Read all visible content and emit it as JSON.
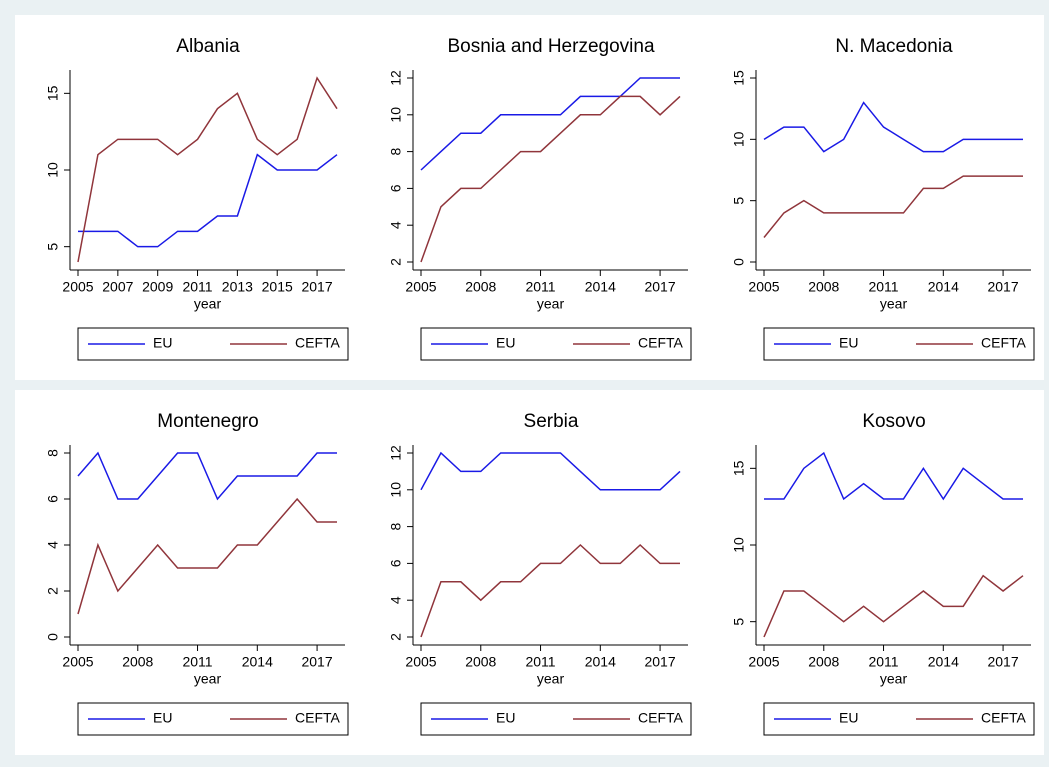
{
  "chart_data": [
    {
      "type": "line",
      "title": "Albania",
      "xlabel": "year",
      "x": [
        2005,
        2006,
        2007,
        2008,
        2009,
        2010,
        2011,
        2012,
        2013,
        2014,
        2015,
        2016,
        2017,
        2018
      ],
      "xlim": [
        2005,
        2018
      ],
      "xticks": [
        2005,
        2007,
        2009,
        2011,
        2013,
        2015,
        2017
      ],
      "ylim": [
        4,
        16
      ],
      "yticks": [
        5,
        10,
        15
      ],
      "grid": false,
      "legend": "bottom",
      "series": [
        {
          "name": "EU",
          "color": "#1a1ae6",
          "values": [
            6,
            6,
            6,
            5,
            5,
            6,
            6,
            7,
            7,
            11,
            10,
            10,
            10,
            11
          ]
        },
        {
          "name": "CEFTA",
          "color": "#90353b",
          "values": [
            4,
            11,
            12,
            12,
            12,
            11,
            12,
            14,
            15,
            12,
            11,
            12,
            16,
            14
          ]
        }
      ]
    },
    {
      "type": "line",
      "title": "Bosnia and Herzegovina",
      "xlabel": "year",
      "x": [
        2005,
        2006,
        2007,
        2008,
        2009,
        2010,
        2011,
        2012,
        2013,
        2014,
        2015,
        2016,
        2017,
        2018
      ],
      "xlim": [
        2005,
        2018
      ],
      "xticks": [
        2005,
        2008,
        2011,
        2014,
        2017
      ],
      "ylim": [
        2,
        12
      ],
      "yticks": [
        2,
        4,
        6,
        8,
        10,
        12
      ],
      "grid": false,
      "legend": "bottom",
      "series": [
        {
          "name": "EU",
          "color": "#1a1ae6",
          "values": [
            7,
            8,
            9,
            9,
            10,
            10,
            10,
            10,
            11,
            11,
            11,
            12,
            12,
            12
          ]
        },
        {
          "name": "CEFTA",
          "color": "#90353b",
          "values": [
            2,
            5,
            6,
            6,
            7,
            8,
            8,
            9,
            10,
            10,
            11,
            11,
            10,
            11
          ]
        }
      ]
    },
    {
      "type": "line",
      "title": "N. Macedonia",
      "xlabel": "year",
      "x": [
        2005,
        2006,
        2007,
        2008,
        2009,
        2010,
        2011,
        2012,
        2013,
        2014,
        2015,
        2016,
        2017,
        2018
      ],
      "xlim": [
        2005,
        2018
      ],
      "xticks": [
        2005,
        2008,
        2011,
        2014,
        2017
      ],
      "ylim": [
        0,
        15
      ],
      "yticks": [
        0,
        5,
        10,
        15
      ],
      "grid": false,
      "legend": "bottom",
      "series": [
        {
          "name": "EU",
          "color": "#1a1ae6",
          "values": [
            10,
            11,
            11,
            9,
            10,
            13,
            11,
            10,
            9,
            9,
            10,
            10,
            10,
            10
          ]
        },
        {
          "name": "CEFTA",
          "color": "#90353b",
          "values": [
            2,
            4,
            5,
            4,
            4,
            4,
            4,
            4,
            6,
            6,
            7,
            7,
            7,
            7
          ]
        }
      ]
    },
    {
      "type": "line",
      "title": "Montenegro",
      "xlabel": "year",
      "x": [
        2005,
        2006,
        2007,
        2008,
        2009,
        2010,
        2011,
        2012,
        2013,
        2014,
        2015,
        2016,
        2017,
        2018
      ],
      "xlim": [
        2005,
        2018
      ],
      "xticks": [
        2005,
        2008,
        2011,
        2014,
        2017
      ],
      "ylim": [
        0,
        8
      ],
      "yticks": [
        0,
        2,
        4,
        6,
        8
      ],
      "grid": false,
      "legend": "bottom",
      "series": [
        {
          "name": "EU",
          "color": "#1a1ae6",
          "values": [
            7,
            8,
            6,
            6,
            7,
            8,
            8,
            6,
            7,
            7,
            7,
            7,
            8,
            8
          ]
        },
        {
          "name": "CEFTA",
          "color": "#90353b",
          "values": [
            1,
            4,
            2,
            3,
            4,
            3,
            3,
            3,
            4,
            4,
            5,
            6,
            5,
            5
          ]
        }
      ]
    },
    {
      "type": "line",
      "title": "Serbia",
      "xlabel": "year",
      "x": [
        2005,
        2006,
        2007,
        2008,
        2009,
        2010,
        2011,
        2012,
        2013,
        2014,
        2015,
        2016,
        2017,
        2018
      ],
      "xlim": [
        2005,
        2018
      ],
      "xticks": [
        2005,
        2008,
        2011,
        2014,
        2017
      ],
      "ylim": [
        2,
        12
      ],
      "yticks": [
        2,
        4,
        6,
        8,
        10,
        12
      ],
      "grid": false,
      "legend": "bottom",
      "series": [
        {
          "name": "EU",
          "color": "#1a1ae6",
          "values": [
            10,
            12,
            11,
            11,
            12,
            12,
            12,
            12,
            11,
            10,
            10,
            10,
            10,
            11
          ]
        },
        {
          "name": "CEFTA",
          "color": "#90353b",
          "values": [
            2,
            5,
            5,
            4,
            5,
            5,
            6,
            6,
            7,
            6,
            6,
            7,
            6,
            6
          ]
        }
      ]
    },
    {
      "type": "line",
      "title": "Kosovo",
      "xlabel": "year",
      "x": [
        2005,
        2006,
        2007,
        2008,
        2009,
        2010,
        2011,
        2012,
        2013,
        2014,
        2015,
        2016,
        2017,
        2018
      ],
      "xlim": [
        2005,
        2018
      ],
      "xticks": [
        2005,
        2008,
        2011,
        2014,
        2017
      ],
      "ylim": [
        4,
        16
      ],
      "yticks": [
        5,
        10,
        15
      ],
      "grid": false,
      "legend": "bottom",
      "series": [
        {
          "name": "EU",
          "color": "#1a1ae6",
          "values": [
            13,
            13,
            15,
            16,
            13,
            14,
            13,
            13,
            15,
            13,
            15,
            14,
            13,
            13
          ]
        },
        {
          "name": "CEFTA",
          "color": "#90353b",
          "values": [
            4,
            7,
            7,
            6,
            5,
            6,
            5,
            6,
            7,
            6,
            6,
            8,
            7,
            8
          ]
        }
      ]
    }
  ]
}
